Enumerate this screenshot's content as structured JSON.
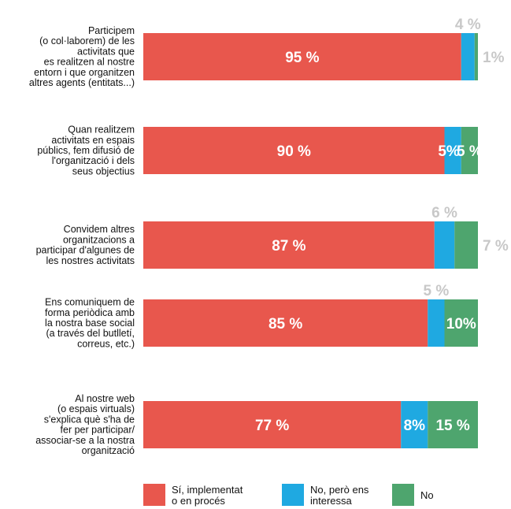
{
  "chart_data": {
    "type": "bar",
    "stacked": true,
    "orientation": "horizontal",
    "categories": [
      [
        "Participem",
        "(o col·laborem) de les",
        "activitats que",
        "es realitzen al nostre",
        "entorn i que organitzen",
        "altres agents (entitats...)"
      ],
      [
        "Quan realitzem",
        "activitats en espais",
        "públics, fem difusió de",
        "l'organització i dels",
        "seus objectius"
      ],
      [
        "Convidem altres",
        "organitzacions a",
        "participar d'algunes de",
        "les nostres activitats"
      ],
      [
        "Ens comuniquem de",
        "forma periòdica amb",
        "la nostra base social",
        "(a través del butlletí,",
        "correus, etc.)"
      ],
      [
        "Al nostre web",
        "(o espais virtuals)",
        "s'explica què s'ha de",
        "fer per participar/",
        "associar-se a la nostra",
        "organització"
      ]
    ],
    "series": [
      {
        "name": "Sí, implementat o en procés",
        "color": "#e8574d",
        "values": [
          95,
          90,
          87,
          85,
          77
        ],
        "labels": [
          "95 %",
          "90 %",
          "87 %",
          "85 %",
          "77 %"
        ]
      },
      {
        "name": "No, però ens interessa",
        "color": "#1fa9e1",
        "values": [
          4,
          5,
          6,
          5,
          8
        ],
        "labels": [
          "4 %",
          "5%",
          "6 %",
          "5 %",
          "8%"
        ]
      },
      {
        "name": "No",
        "color": "#4ea56e",
        "values": [
          1,
          5,
          7,
          10,
          15
        ],
        "labels": [
          "1%",
          "5 %",
          "7 %",
          "10%",
          "15 %"
        ]
      }
    ],
    "xlim": [
      0,
      100
    ],
    "legend": {
      "position": "bottom",
      "entries": [
        [
          "Sí, implementat",
          "o en procés"
        ],
        [
          "No, però ens",
          "interessa"
        ],
        [
          "No"
        ]
      ]
    }
  }
}
